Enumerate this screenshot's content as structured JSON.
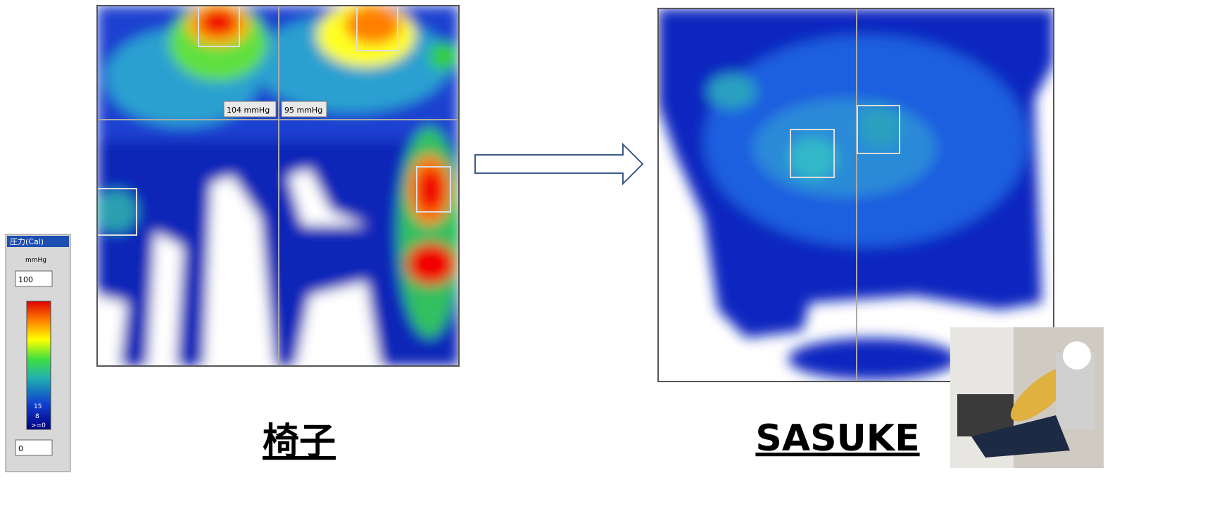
{
  "legend_panel": {
    "title": "圧力(Cal)",
    "unit": "mmHg",
    "max_input": "100",
    "min_input": "0",
    "scale_labels": [
      "15",
      "8",
      ">=0"
    ]
  },
  "chair_map": {
    "sensor_labels": [
      "104 mmHg",
      "95 mmHg"
    ]
  },
  "captions": {
    "chair": "椅子",
    "sasuke": "SASUKE"
  }
}
